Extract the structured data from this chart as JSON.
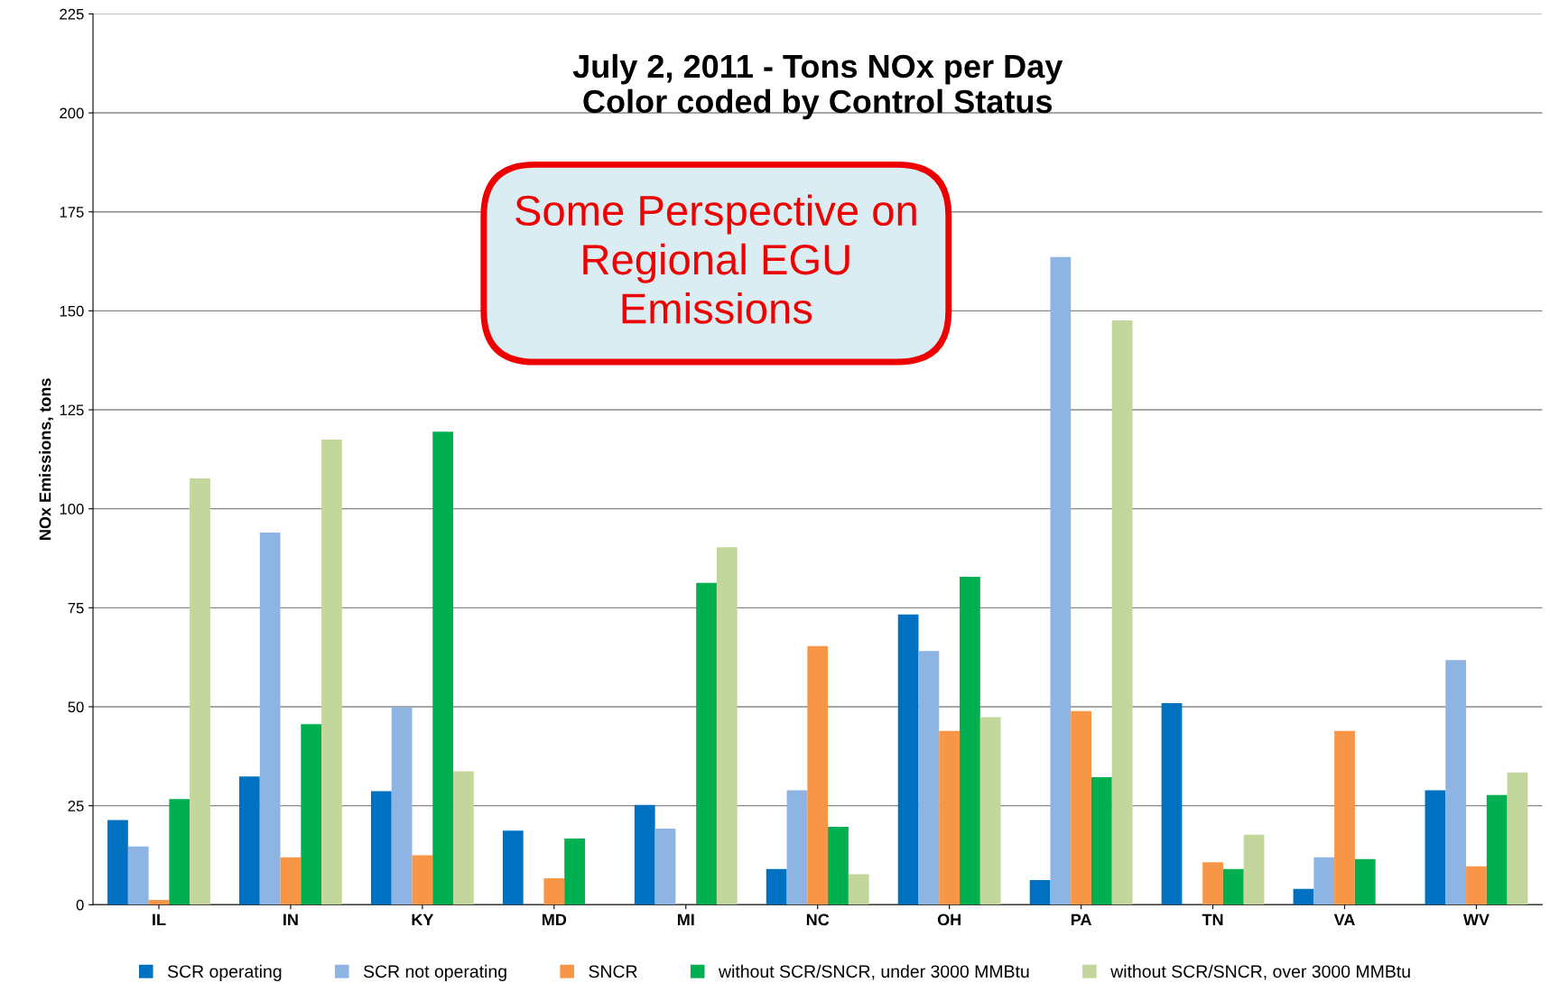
{
  "chart_data": {
    "type": "bar",
    "title": "July 2, 2011 - Tons NOx per Day\nColor coded by Control Status",
    "ylabel": "NOx Emissions, tons",
    "annotations": [
      "Some Perspective on\nRegional EGU\nEmissions"
    ],
    "categories": [
      "IL",
      "IN",
      "KY",
      "MD",
      "MI",
      "NC",
      "OH",
      "PA",
      "TN",
      "VA",
      "WV"
    ],
    "series": [
      {
        "name": "SCR operating",
        "color": "#0070c0",
        "values": [
          21.4,
          32.4,
          28.7,
          18.7,
          25.2,
          9,
          73.3,
          6.2,
          50.9,
          4,
          28.9
        ]
      },
      {
        "name": "SCR not operating",
        "color": "#8eb4e3",
        "values": [
          14.7,
          94,
          49.9,
          null,
          19.2,
          28.9,
          64.1,
          163.6,
          null,
          12,
          61.8
        ]
      },
      {
        "name": "SNCR",
        "color": "#f79646",
        "values": [
          1.2,
          12,
          12.5,
          6.7,
          null,
          65.3,
          43.9,
          48.9,
          10.7,
          43.9,
          9.7
        ]
      },
      {
        "name": "without SCR/SNCR, under 3000 MMBtu",
        "color": "#00b050",
        "values": [
          26.7,
          45.6,
          119.5,
          16.7,
          81.3,
          19.7,
          82.8,
          32.2,
          9,
          11.5,
          27.7
        ]
      },
      {
        "name": "without SCR/SNCR, over 3000 MMBtu",
        "color": "#c3d69b",
        "values": [
          107.7,
          117.5,
          33.7,
          null,
          90.3,
          7.7,
          47.4,
          147.6,
          17.7,
          null,
          33.4
        ]
      }
    ],
    "ylim": [
      0,
      225
    ],
    "yticks": [
      0,
      25,
      50,
      75,
      100,
      125,
      150,
      175,
      200,
      225
    ],
    "grid": "y",
    "legend": "bottom"
  }
}
